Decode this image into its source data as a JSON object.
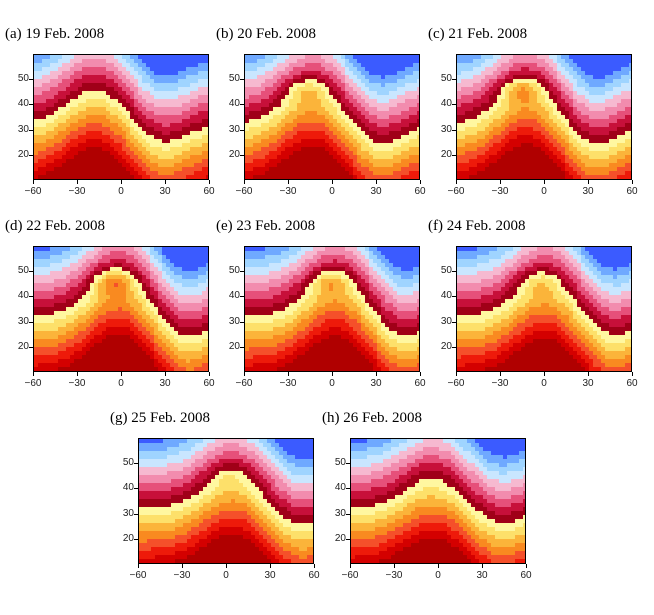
{
  "figure": {
    "y_ticks": [
      "20",
      "30",
      "40",
      "50"
    ],
    "x_ticks": [
      "−60",
      "−30",
      "0",
      "30",
      "60"
    ],
    "palette": [
      "#b00000",
      "#d40000",
      "#ee1a0a",
      "#f5502a",
      "#f98a20",
      "#fbb43a",
      "#fde06a",
      "#fff7a0",
      "#a00018",
      "#c7103a",
      "#e6507a",
      "#f28cae",
      "#f6b9d0",
      "#c9e6ff",
      "#9fd4ff",
      "#6fa9ff",
      "#3b5bff"
    ],
    "panels": [
      {
        "id": "a",
        "title": "(a) 19 Feb. 2008",
        "blob": 0.0,
        "wave": 0.85,
        "crest": -18
      },
      {
        "id": "b",
        "title": "(b) 20 Feb. 2008",
        "blob": 0.6,
        "wave": 0.9,
        "crest": -14
      },
      {
        "id": "c",
        "title": "(c) 21 Feb. 2008",
        "blob": 0.9,
        "wave": 0.95,
        "crest": -12
      },
      {
        "id": "d",
        "title": "(d) 22 Feb. 2008",
        "blob": 1.0,
        "wave": 1.0,
        "crest": -2
      },
      {
        "id": "e",
        "title": "(e) 23 Feb. 2008",
        "blob": 0.75,
        "wave": 0.95,
        "crest": 2
      },
      {
        "id": "f",
        "title": "(f) 24 Feb. 2008",
        "blob": 0.55,
        "wave": 0.9,
        "crest": 0
      },
      {
        "id": "g",
        "title": "(g) 25 Feb. 2008",
        "blob": 0.35,
        "wave": 0.8,
        "crest": 4
      },
      {
        "id": "h",
        "title": "(h) 26 Feb. 2008",
        "blob": 0.1,
        "wave": 0.7,
        "crest": -4
      }
    ]
  }
}
